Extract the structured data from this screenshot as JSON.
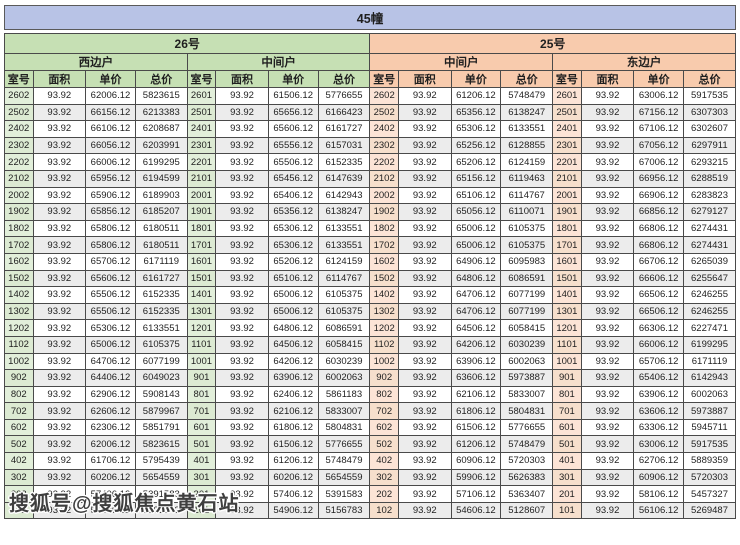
{
  "page": {
    "title": "45幢"
  },
  "watermark": {
    "text": "搜狐号@搜狐焦点黄石站"
  },
  "colors": {
    "title_bg": "#b8c3e6",
    "building26_bg": "#c6e0b4",
    "building25_bg": "#f8cbad",
    "room26_bg": "#e2efda",
    "room25_bg": "#fce4d6",
    "stripe_bg": "#ececec",
    "border": "#4a4a4a"
  },
  "table": {
    "columns": [
      "室号",
      "面积",
      "单价",
      "总价"
    ],
    "buildings": [
      {
        "name": "26号",
        "sections": [
          "西边户",
          "中间户"
        ]
      },
      {
        "name": "25号",
        "sections": [
          "中间户",
          "东边户"
        ]
      }
    ],
    "rows": [
      [
        "2602",
        "93.92",
        "62006.12",
        "5823615",
        "2601",
        "93.92",
        "61506.12",
        "5776655",
        "2602",
        "93.92",
        "61206.12",
        "5748479",
        "2601",
        "93.92",
        "63006.12",
        "5917535"
      ],
      [
        "2502",
        "93.92",
        "66156.12",
        "6213383",
        "2501",
        "93.92",
        "65656.12",
        "6166423",
        "2502",
        "93.92",
        "65356.12",
        "6138247",
        "2501",
        "93.92",
        "67156.12",
        "6307303"
      ],
      [
        "2402",
        "93.92",
        "66106.12",
        "6208687",
        "2401",
        "93.92",
        "65606.12",
        "6161727",
        "2402",
        "93.92",
        "65306.12",
        "6133551",
        "2401",
        "93.92",
        "67106.12",
        "6302607"
      ],
      [
        "2302",
        "93.92",
        "66056.12",
        "6203991",
        "2301",
        "93.92",
        "65556.12",
        "6157031",
        "2302",
        "93.92",
        "65256.12",
        "6128855",
        "2301",
        "93.92",
        "67056.12",
        "6297911"
      ],
      [
        "2202",
        "93.92",
        "66006.12",
        "6199295",
        "2201",
        "93.92",
        "65506.12",
        "6152335",
        "2202",
        "93.92",
        "65206.12",
        "6124159",
        "2201",
        "93.92",
        "67006.12",
        "6293215"
      ],
      [
        "2102",
        "93.92",
        "65956.12",
        "6194599",
        "2101",
        "93.92",
        "65456.12",
        "6147639",
        "2102",
        "93.92",
        "65156.12",
        "6119463",
        "2101",
        "93.92",
        "66956.12",
        "6288519"
      ],
      [
        "2002",
        "93.92",
        "65906.12",
        "6189903",
        "2001",
        "93.92",
        "65406.12",
        "6142943",
        "2002",
        "93.92",
        "65106.12",
        "6114767",
        "2001",
        "93.92",
        "66906.12",
        "6283823"
      ],
      [
        "1902",
        "93.92",
        "65856.12",
        "6185207",
        "1901",
        "93.92",
        "65356.12",
        "6138247",
        "1902",
        "93.92",
        "65056.12",
        "6110071",
        "1901",
        "93.92",
        "66856.12",
        "6279127"
      ],
      [
        "1802",
        "93.92",
        "65806.12",
        "6180511",
        "1801",
        "93.92",
        "65306.12",
        "6133551",
        "1802",
        "93.92",
        "65006.12",
        "6105375",
        "1801",
        "93.92",
        "66806.12",
        "6274431"
      ],
      [
        "1702",
        "93.92",
        "65806.12",
        "6180511",
        "1701",
        "93.92",
        "65306.12",
        "6133551",
        "1702",
        "93.92",
        "65006.12",
        "6105375",
        "1701",
        "93.92",
        "66806.12",
        "6274431"
      ],
      [
        "1602",
        "93.92",
        "65706.12",
        "6171119",
        "1601",
        "93.92",
        "65206.12",
        "6124159",
        "1602",
        "93.92",
        "64906.12",
        "6095983",
        "1601",
        "93.92",
        "66706.12",
        "6265039"
      ],
      [
        "1502",
        "93.92",
        "65606.12",
        "6161727",
        "1501",
        "93.92",
        "65106.12",
        "6114767",
        "1502",
        "93.92",
        "64806.12",
        "6086591",
        "1501",
        "93.92",
        "66606.12",
        "6255647"
      ],
      [
        "1402",
        "93.92",
        "65506.12",
        "6152335",
        "1401",
        "93.92",
        "65006.12",
        "6105375",
        "1402",
        "93.92",
        "64706.12",
        "6077199",
        "1401",
        "93.92",
        "66506.12",
        "6246255"
      ],
      [
        "1302",
        "93.92",
        "65506.12",
        "6152335",
        "1301",
        "93.92",
        "65006.12",
        "6105375",
        "1302",
        "93.92",
        "64706.12",
        "6077199",
        "1301",
        "93.92",
        "66506.12",
        "6246255"
      ],
      [
        "1202",
        "93.92",
        "65306.12",
        "6133551",
        "1201",
        "93.92",
        "64806.12",
        "6086591",
        "1202",
        "93.92",
        "64506.12",
        "6058415",
        "1201",
        "93.92",
        "66306.12",
        "6227471"
      ],
      [
        "1102",
        "93.92",
        "65006.12",
        "6105375",
        "1101",
        "93.92",
        "64506.12",
        "6058415",
        "1102",
        "93.92",
        "64206.12",
        "6030239",
        "1101",
        "93.92",
        "66006.12",
        "6199295"
      ],
      [
        "1002",
        "93.92",
        "64706.12",
        "6077199",
        "1001",
        "93.92",
        "64206.12",
        "6030239",
        "1002",
        "93.92",
        "63906.12",
        "6002063",
        "1001",
        "93.92",
        "65706.12",
        "6171119"
      ],
      [
        "902",
        "93.92",
        "64406.12",
        "6049023",
        "901",
        "93.92",
        "63906.12",
        "6002063",
        "902",
        "93.92",
        "63606.12",
        "5973887",
        "901",
        "93.92",
        "65406.12",
        "6142943"
      ],
      [
        "802",
        "93.92",
        "62906.12",
        "5908143",
        "801",
        "93.92",
        "62406.12",
        "5861183",
        "802",
        "93.92",
        "62106.12",
        "5833007",
        "801",
        "93.92",
        "63906.12",
        "6002063"
      ],
      [
        "702",
        "93.92",
        "62606.12",
        "5879967",
        "701",
        "93.92",
        "62106.12",
        "5833007",
        "702",
        "93.92",
        "61806.12",
        "5804831",
        "701",
        "93.92",
        "63606.12",
        "5973887"
      ],
      [
        "602",
        "93.92",
        "62306.12",
        "5851791",
        "601",
        "93.92",
        "61806.12",
        "5804831",
        "602",
        "93.92",
        "61506.12",
        "5776655",
        "601",
        "93.92",
        "63306.12",
        "5945711"
      ],
      [
        "502",
        "93.92",
        "62006.12",
        "5823615",
        "501",
        "93.92",
        "61506.12",
        "5776655",
        "502",
        "93.92",
        "61206.12",
        "5748479",
        "501",
        "93.92",
        "63006.12",
        "5917535"
      ],
      [
        "402",
        "93.92",
        "61706.12",
        "5795439",
        "401",
        "93.92",
        "61206.12",
        "5748479",
        "402",
        "93.92",
        "60906.12",
        "5720303",
        "401",
        "93.92",
        "62706.12",
        "5889359"
      ],
      [
        "302",
        "93.92",
        "60206.12",
        "5654559",
        "301",
        "93.92",
        "60206.12",
        "5654559",
        "302",
        "93.92",
        "59906.12",
        "5626383",
        "301",
        "93.92",
        "60906.12",
        "5720303"
      ],
      [
        "202",
        "93.92",
        "57406.12",
        "5391583",
        "201",
        "93.92",
        "57406.12",
        "5391583",
        "202",
        "93.92",
        "57106.12",
        "5363407",
        "201",
        "93.92",
        "58106.12",
        "5457327"
      ],
      [
        "102",
        "93.92",
        "55406.12",
        "5203743",
        "101",
        "93.92",
        "54906.12",
        "5156783",
        "102",
        "93.92",
        "54606.12",
        "5128607",
        "101",
        "93.92",
        "56106.12",
        "5269487"
      ]
    ]
  }
}
